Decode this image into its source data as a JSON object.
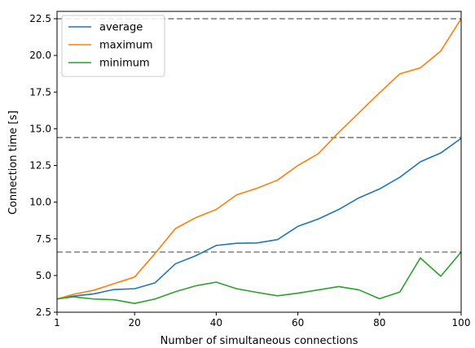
{
  "chart_data": {
    "type": "line",
    "title": "",
    "xlabel": "Number of simultaneous connections",
    "ylabel": "Connection time [s]",
    "xlim": [
      1,
      100
    ],
    "ylim": [
      2.5,
      23.0
    ],
    "xticks": [
      1,
      20,
      40,
      60,
      80,
      100
    ],
    "xtick_labels": [
      "1",
      "20",
      "40",
      "60",
      "80",
      "100"
    ],
    "yticks": [
      2.5,
      5.0,
      7.5,
      10.0,
      12.5,
      15.0,
      17.5,
      20.0,
      22.5
    ],
    "ytick_labels": [
      "2.5",
      "5.0",
      "7.5",
      "10.0",
      "12.5",
      "15.0",
      "17.5",
      "20.0",
      "22.5"
    ],
    "grid": false,
    "legend_position": "upper-left",
    "x": [
      1,
      5,
      10,
      15,
      20,
      25,
      30,
      35,
      40,
      45,
      50,
      55,
      60,
      65,
      70,
      75,
      80,
      85,
      90,
      95,
      100
    ],
    "series": [
      {
        "name": "average",
        "color": "#1f77b4",
        "values": [
          3.4,
          3.6,
          3.75,
          4.05,
          4.1,
          4.5,
          5.8,
          6.35,
          7.05,
          7.2,
          7.22,
          7.45,
          8.35,
          8.85,
          9.5,
          10.3,
          10.9,
          11.7,
          12.75,
          13.35,
          14.35
        ]
      },
      {
        "name": "maximum",
        "color": "#ff7f0e",
        "values": [
          3.4,
          3.72,
          4.0,
          4.45,
          4.9,
          6.5,
          8.2,
          8.95,
          9.5,
          10.5,
          10.95,
          11.5,
          12.5,
          13.3,
          14.75,
          16.1,
          17.45,
          18.75,
          19.15,
          20.3,
          22.5
        ]
      },
      {
        "name": "minimum",
        "color": "#2ca02c",
        "values": [
          3.4,
          3.55,
          3.4,
          3.35,
          3.1,
          3.4,
          3.9,
          4.3,
          4.55,
          4.1,
          3.85,
          3.62,
          3.8,
          4.02,
          4.25,
          4.02,
          3.42,
          3.88,
          6.2,
          4.95,
          6.6
        ]
      }
    ],
    "reference_lines": {
      "color": "#808080",
      "values": [
        22.5,
        14.4,
        6.6
      ]
    }
  }
}
